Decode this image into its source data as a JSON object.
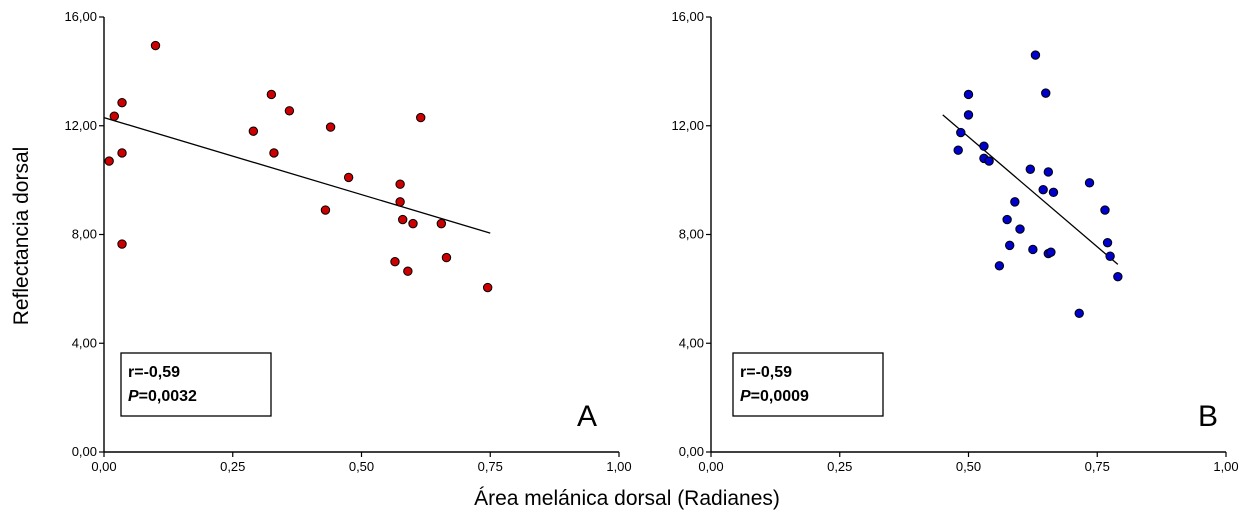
{
  "ylabel": "Reflectancia dorsal",
  "xlabel": "Área melánica dorsal (Radianes)",
  "colors": {
    "panel_a_points": "#cc0000",
    "panel_b_points": "#0000cc",
    "axis": "#000000"
  },
  "chart_data": [
    {
      "type": "scatter",
      "panel": "A",
      "xlim": [
        0,
        1
      ],
      "ylim": [
        0,
        16
      ],
      "xticks": [
        "0,00",
        "0,25",
        "0,50",
        "0,75",
        "1,00"
      ],
      "yticks": [
        "0,00",
        "4,00",
        "8,00",
        "12,00",
        "16,00"
      ],
      "grid": false,
      "stats": {
        "r": "r=-0,59",
        "p_label": "P",
        "p_value": "=0,0032"
      },
      "fit_line": {
        "x": [
          0.0,
          0.75
        ],
        "y": [
          12.3,
          8.05
        ]
      },
      "points": [
        {
          "x": 0.01,
          "y": 10.7
        },
        {
          "x": 0.02,
          "y": 12.35
        },
        {
          "x": 0.035,
          "y": 12.85
        },
        {
          "x": 0.035,
          "y": 11.0
        },
        {
          "x": 0.035,
          "y": 7.65
        },
        {
          "x": 0.1,
          "y": 14.95
        },
        {
          "x": 0.29,
          "y": 11.8
        },
        {
          "x": 0.325,
          "y": 13.15
        },
        {
          "x": 0.33,
          "y": 11.0
        },
        {
          "x": 0.36,
          "y": 12.55
        },
        {
          "x": 0.43,
          "y": 8.9
        },
        {
          "x": 0.44,
          "y": 11.95
        },
        {
          "x": 0.475,
          "y": 10.1
        },
        {
          "x": 0.565,
          "y": 7.0
        },
        {
          "x": 0.575,
          "y": 9.85
        },
        {
          "x": 0.575,
          "y": 9.2
        },
        {
          "x": 0.58,
          "y": 8.55
        },
        {
          "x": 0.59,
          "y": 6.65
        },
        {
          "x": 0.6,
          "y": 8.4
        },
        {
          "x": 0.615,
          "y": 12.3
        },
        {
          "x": 0.655,
          "y": 8.4
        },
        {
          "x": 0.665,
          "y": 7.15
        },
        {
          "x": 0.745,
          "y": 6.05
        }
      ]
    },
    {
      "type": "scatter",
      "panel": "B",
      "xlim": [
        0,
        1
      ],
      "ylim": [
        0,
        16
      ],
      "xticks": [
        "0,00",
        "0,25",
        "0,50",
        "0,75",
        "1,00"
      ],
      "yticks": [
        "0,00",
        "4,00",
        "8,00",
        "12,00",
        "16,00"
      ],
      "grid": false,
      "stats": {
        "r": "r=-0,59",
        "p_label": "P",
        "p_value": "=0,0009"
      },
      "fit_line": {
        "x": [
          0.45,
          0.79
        ],
        "y": [
          12.4,
          6.9
        ]
      },
      "points": [
        {
          "x": 0.48,
          "y": 11.1
        },
        {
          "x": 0.485,
          "y": 11.75
        },
        {
          "x": 0.5,
          "y": 12.4
        },
        {
          "x": 0.5,
          "y": 13.15
        },
        {
          "x": 0.53,
          "y": 11.25
        },
        {
          "x": 0.53,
          "y": 10.8
        },
        {
          "x": 0.54,
          "y": 10.7
        },
        {
          "x": 0.56,
          "y": 6.85
        },
        {
          "x": 0.575,
          "y": 8.55
        },
        {
          "x": 0.58,
          "y": 7.6
        },
        {
          "x": 0.59,
          "y": 9.2
        },
        {
          "x": 0.6,
          "y": 8.2
        },
        {
          "x": 0.62,
          "y": 10.4
        },
        {
          "x": 0.625,
          "y": 7.45
        },
        {
          "x": 0.63,
          "y": 14.6
        },
        {
          "x": 0.645,
          "y": 9.65
        },
        {
          "x": 0.65,
          "y": 13.2
        },
        {
          "x": 0.655,
          "y": 10.3
        },
        {
          "x": 0.655,
          "y": 7.3
        },
        {
          "x": 0.66,
          "y": 7.35
        },
        {
          "x": 0.665,
          "y": 9.55
        },
        {
          "x": 0.735,
          "y": 9.9
        },
        {
          "x": 0.765,
          "y": 8.9
        },
        {
          "x": 0.77,
          "y": 7.7
        },
        {
          "x": 0.775,
          "y": 7.2
        },
        {
          "x": 0.79,
          "y": 6.45
        },
        {
          "x": 0.715,
          "y": 5.1
        }
      ]
    }
  ]
}
